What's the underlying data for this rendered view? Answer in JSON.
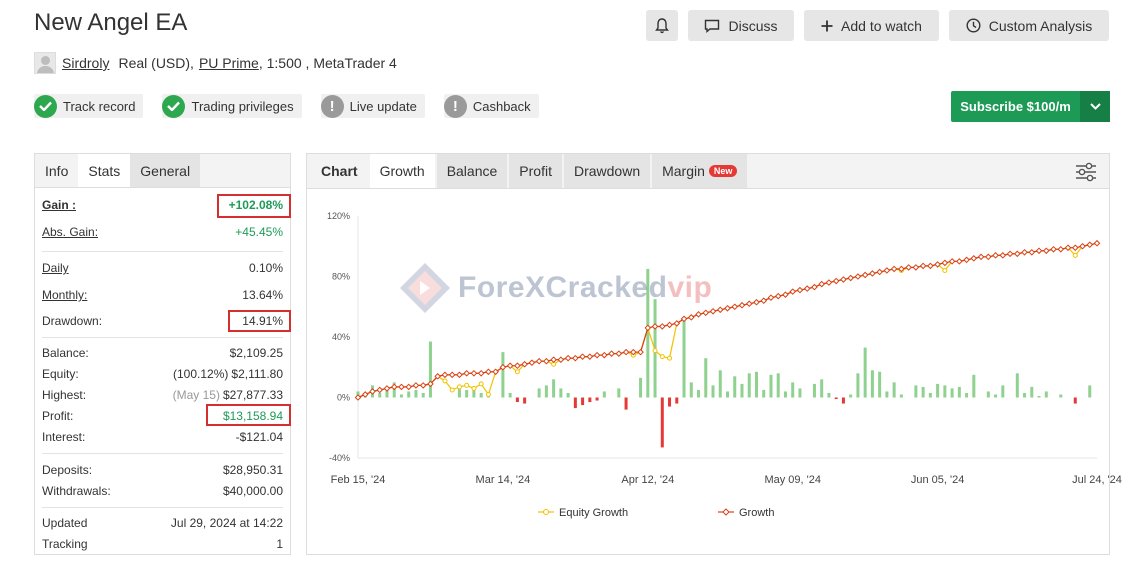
{
  "title": "New Angel EA",
  "header": {
    "discuss": "Discuss",
    "add_watch": "Add to watch",
    "custom": "Custom Analysis"
  },
  "owner": {
    "name": "Sirdroly",
    "account": "Real (USD),",
    "broker": "PU Prime",
    "leverage": ", 1:500 , MetaTrader 4"
  },
  "badges": [
    {
      "label": "Track record",
      "status": "ok"
    },
    {
      "label": "Trading privileges",
      "status": "ok"
    },
    {
      "label": "Live update",
      "status": "warn"
    },
    {
      "label": "Cashback",
      "status": "warn"
    }
  ],
  "subscribe": "Subscribe $100/m",
  "stats_tabs": [
    "Info",
    "Stats",
    "General"
  ],
  "stats": {
    "gain_label": "Gain :",
    "gain": "+102.08%",
    "abs_gain_label": "Abs. Gain:",
    "abs_gain": "+45.45%",
    "daily_label": "Daily",
    "daily": "0.10%",
    "monthly_label": "Monthly:",
    "monthly": "13.64%",
    "drawdown_label": "Drawdown:",
    "drawdown": "14.91%",
    "balance_label": "Balance:",
    "balance": "$2,109.25",
    "equity_label": "Equity:",
    "equity_pct": "(100.12%)",
    "equity": "$2,111.80",
    "highest_label": "Highest:",
    "highest_date": "(May 15)",
    "highest": "$27,877.33",
    "profit_label": "Profit:",
    "profit": "$13,158.94",
    "interest_label": "Interest:",
    "interest": "-$121.04",
    "deposits_label": "Deposits:",
    "deposits": "$28,950.31",
    "withdrawals_label": "Withdrawals:",
    "withdrawals": "$40,000.00",
    "updated_label": "Updated",
    "updated": "Jul 29, 2024 at 14:22",
    "tracking_label": "Tracking",
    "tracking": "1"
  },
  "chart_tabs": [
    "Chart",
    "Growth",
    "Balance",
    "Profit",
    "Drawdown",
    "Margin"
  ],
  "new_badge": "New",
  "watermark": {
    "main": "ForeXCracked",
    "suffix": "vip"
  },
  "colors": {
    "growth": "#d84315",
    "equity": "#f2c200",
    "bar_pos": "#8fd18f",
    "bar_neg": "#e53935",
    "accent_green": "#1e9a57"
  },
  "chart_data": {
    "type": "line",
    "ylim": [
      -40,
      120
    ],
    "yticks": [
      "120%",
      "80%",
      "40%",
      "0%",
      "-40%"
    ],
    "ytick_values": [
      120,
      80,
      40,
      0,
      -40
    ],
    "xticks": [
      "Feb 15, '24",
      "Mar 14, '24",
      "Apr 12, '24",
      "May 09, '24",
      "Jun 05, '24",
      "Jul 24, '24"
    ],
    "xtick_index": [
      0,
      20,
      40,
      60,
      80,
      102
    ],
    "n": 103,
    "series": [
      {
        "name": "Growth",
        "values": [
          0,
          2,
          4,
          5,
          6,
          7,
          7,
          7,
          8,
          8,
          9,
          14,
          15,
          15,
          15,
          16,
          16,
          16,
          17,
          17,
          20,
          21,
          21,
          22,
          23,
          24,
          24,
          25,
          25,
          26,
          26,
          27,
          27,
          28,
          28,
          29,
          29,
          30,
          30,
          30,
          46,
          47,
          47,
          48,
          49,
          52,
          53,
          55,
          56,
          57,
          58,
          59,
          60,
          61,
          62,
          63,
          64,
          66,
          67,
          68,
          70,
          71,
          72,
          73,
          75,
          76,
          77,
          78,
          79,
          80,
          81,
          82,
          83,
          84,
          85,
          85,
          86,
          86,
          87,
          87,
          88,
          89,
          90,
          90,
          91,
          92,
          93,
          93,
          94,
          94,
          95,
          95,
          96,
          96,
          97,
          97,
          98,
          98,
          99,
          99,
          100,
          101,
          102
        ]
      },
      {
        "name": "Equity Growth",
        "values": [
          0,
          2,
          4,
          5,
          6,
          7,
          7,
          7,
          8,
          8,
          9,
          14,
          11,
          5,
          7,
          8,
          6,
          9,
          2,
          17,
          20,
          21,
          17,
          22,
          23,
          24,
          24,
          22,
          25,
          26,
          26,
          27,
          27,
          28,
          28,
          29,
          29,
          30,
          28,
          30,
          46,
          31,
          27,
          26,
          49,
          52,
          53,
          55,
          56,
          57,
          58,
          59,
          60,
          61,
          62,
          63,
          64,
          66,
          67,
          68,
          70,
          71,
          72,
          73,
          75,
          76,
          77,
          78,
          79,
          80,
          81,
          82,
          83,
          84,
          85,
          84,
          86,
          86,
          87,
          87,
          88,
          84,
          90,
          90,
          91,
          92,
          93,
          93,
          94,
          94,
          95,
          95,
          96,
          96,
          97,
          97,
          98,
          98,
          99,
          94,
          100,
          101,
          102
        ]
      },
      {
        "name": "Profit bars",
        "values": [
          4,
          3,
          8,
          3,
          5,
          10,
          2,
          4,
          5,
          3,
          37,
          0,
          0,
          0,
          8,
          5,
          6,
          3,
          2,
          0,
          30,
          3,
          -3,
          -4,
          0,
          6,
          8,
          12,
          6,
          3,
          -7,
          -5,
          -3,
          -2,
          4,
          0,
          6,
          -8,
          0,
          13,
          85,
          65,
          -33,
          -6,
          -4,
          52,
          10,
          5,
          26,
          8,
          18,
          4,
          14,
          9,
          16,
          17,
          5,
          15,
          16,
          4,
          10,
          6,
          0,
          9,
          12,
          3,
          -1,
          -4,
          2,
          16,
          33,
          18,
          17,
          4,
          10,
          2,
          0,
          8,
          7,
          3,
          9,
          8,
          6,
          7,
          3,
          15,
          0,
          4,
          2,
          8,
          0,
          16,
          3,
          7,
          1,
          4,
          0,
          2,
          0,
          -4,
          0,
          8,
          0
        ]
      }
    ],
    "legend": [
      "Equity Growth",
      "Growth"
    ],
    "legend_position": "bottom",
    "grid": false
  }
}
